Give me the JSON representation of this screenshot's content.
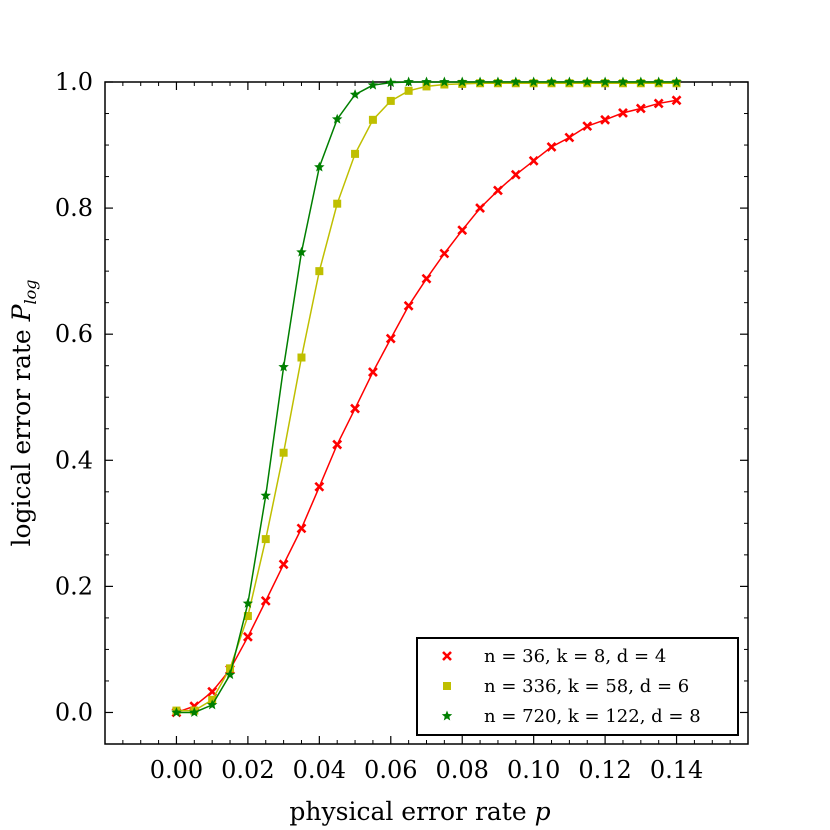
{
  "chart_data": {
    "type": "line",
    "title": "",
    "xlabel": "physical error rate",
    "xlabel_var": "p",
    "ylabel": "logical error rate",
    "ylabel_var": "P",
    "ylabel_sub": "log",
    "xlim": [
      -0.02,
      0.16
    ],
    "ylim": [
      -0.05,
      1.0
    ],
    "x_ticks": [
      0.0,
      0.02,
      0.04,
      0.06,
      0.08,
      0.1,
      0.12,
      0.14
    ],
    "x_tick_labels": [
      "0.00",
      "0.02",
      "0.04",
      "0.06",
      "0.08",
      "0.10",
      "0.12",
      "0.14"
    ],
    "y_ticks": [
      0.0,
      0.2,
      0.4,
      0.6,
      0.8,
      1.0
    ],
    "y_tick_labels": [
      "0.0",
      "0.2",
      "0.4",
      "0.6",
      "0.8",
      "1.0"
    ],
    "legend_position": "bottom-right",
    "grid": false,
    "series": [
      {
        "name": "n = 36, k = 8, d = 4",
        "color": "#ff0000",
        "marker": "x",
        "x": [
          0.0,
          0.005,
          0.01,
          0.015,
          0.02,
          0.025,
          0.03,
          0.035,
          0.04,
          0.045,
          0.05,
          0.055,
          0.06,
          0.065,
          0.07,
          0.075,
          0.08,
          0.085,
          0.09,
          0.095,
          0.1,
          0.105,
          0.11,
          0.115,
          0.12,
          0.125,
          0.13,
          0.135,
          0.14
        ],
        "values": [
          0.0,
          0.01,
          0.033,
          0.068,
          0.12,
          0.177,
          0.235,
          0.292,
          0.358,
          0.425,
          0.482,
          0.54,
          0.593,
          0.645,
          0.688,
          0.728,
          0.765,
          0.8,
          0.828,
          0.853,
          0.875,
          0.897,
          0.912,
          0.93,
          0.94,
          0.951,
          0.958,
          0.966,
          0.971
        ]
      },
      {
        "name": "n = 336, k = 58, d = 6",
        "color": "#bfbf00",
        "marker": "square",
        "x": [
          0.0,
          0.005,
          0.01,
          0.015,
          0.02,
          0.025,
          0.03,
          0.035,
          0.04,
          0.045,
          0.05,
          0.055,
          0.06,
          0.065,
          0.07,
          0.075,
          0.08,
          0.085,
          0.09,
          0.095,
          0.1,
          0.105,
          0.11,
          0.115,
          0.12,
          0.125,
          0.13,
          0.135,
          0.14
        ],
        "values": [
          0.003,
          0.003,
          0.02,
          0.07,
          0.153,
          0.275,
          0.412,
          0.563,
          0.7,
          0.807,
          0.886,
          0.94,
          0.97,
          0.986,
          0.993,
          0.996,
          0.997,
          0.998,
          0.998,
          0.998,
          0.998,
          0.998,
          0.998,
          0.998,
          0.998,
          0.998,
          0.998,
          0.998,
          0.998
        ]
      },
      {
        "name": "n = 720, k = 122, d = 8",
        "color": "#007f00",
        "marker": "star",
        "x": [
          0.0,
          0.005,
          0.01,
          0.015,
          0.02,
          0.025,
          0.03,
          0.035,
          0.04,
          0.045,
          0.05,
          0.055,
          0.06,
          0.065,
          0.07,
          0.075,
          0.08,
          0.085,
          0.09,
          0.095,
          0.1,
          0.105,
          0.11,
          0.115,
          0.12,
          0.125,
          0.13,
          0.135,
          0.14
        ],
        "values": [
          0.0,
          0.0,
          0.012,
          0.06,
          0.173,
          0.344,
          0.548,
          0.73,
          0.865,
          0.941,
          0.98,
          0.995,
          0.999,
          1.0,
          1.0,
          1.0,
          1.0,
          1.0,
          1.0,
          1.0,
          1.0,
          1.0,
          1.0,
          1.0,
          1.0,
          1.0,
          1.0,
          1.0,
          1.0
        ]
      }
    ]
  }
}
